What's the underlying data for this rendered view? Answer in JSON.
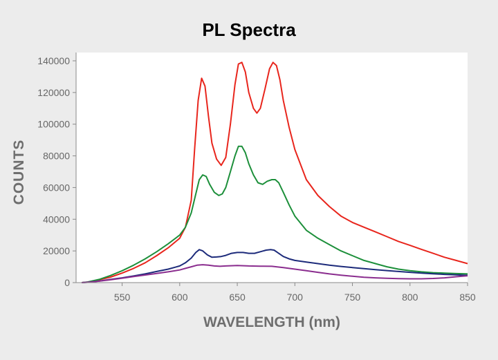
{
  "colors": {
    "background": "#ececec",
    "plot_area": "#ffffff",
    "axis": "#888888"
  },
  "chart_data": {
    "type": "line",
    "title": "PL Spectra",
    "xlabel": "WAVELENGTH (nm)",
    "ylabel": "COUNTS",
    "xlim": [
      510,
      850
    ],
    "ylim": [
      0,
      140000
    ],
    "xticks": [
      550,
      600,
      650,
      700,
      750,
      800,
      850
    ],
    "yticks": [
      0,
      20000,
      40000,
      60000,
      80000,
      100000,
      120000,
      140000
    ],
    "grid": false,
    "legend": "none",
    "series": [
      {
        "color": "#e8251c",
        "x": [
          515,
          520,
          530,
          540,
          550,
          560,
          570,
          580,
          590,
          600,
          605,
          610,
          613,
          616,
          619,
          622,
          625,
          628,
          632,
          636,
          640,
          644,
          648,
          651,
          654,
          657,
          660,
          664,
          667,
          670,
          674,
          678,
          681,
          684,
          687,
          690,
          695,
          700,
          710,
          720,
          730,
          740,
          750,
          760,
          770,
          780,
          790,
          800,
          810,
          820,
          830,
          840,
          850
        ],
        "y": [
          0,
          300,
          1800,
          3500,
          6000,
          9000,
          12500,
          17000,
          22000,
          28000,
          35000,
          52000,
          85000,
          115000,
          129000,
          124000,
          105000,
          88000,
          78000,
          74000,
          79000,
          100000,
          125000,
          138000,
          139000,
          133000,
          120000,
          110000,
          107000,
          110000,
          122000,
          135000,
          139000,
          137000,
          128000,
          115000,
          98000,
          84000,
          65000,
          55000,
          48000,
          42000,
          38000,
          35000,
          32000,
          29000,
          26000,
          23500,
          21000,
          18500,
          16000,
          14000,
          12000
        ]
      },
      {
        "color": "#1c8f3a",
        "x": [
          515,
          520,
          530,
          540,
          550,
          560,
          570,
          580,
          590,
          600,
          605,
          610,
          614,
          617,
          620,
          623,
          626,
          630,
          634,
          637,
          640,
          644,
          648,
          651,
          654,
          657,
          660,
          664,
          668,
          672,
          676,
          680,
          683,
          686,
          690,
          695,
          700,
          710,
          720,
          730,
          740,
          750,
          760,
          770,
          780,
          790,
          800,
          810,
          820,
          830,
          840,
          850
        ],
        "y": [
          0,
          400,
          2000,
          4500,
          7500,
          11000,
          15000,
          19500,
          24500,
          30000,
          35000,
          44000,
          56000,
          65000,
          68000,
          67000,
          62000,
          57000,
          55000,
          56000,
          60000,
          70000,
          80000,
          86000,
          86000,
          82000,
          75000,
          68000,
          63000,
          62000,
          64000,
          65000,
          65000,
          63000,
          57000,
          49000,
          42000,
          33000,
          28000,
          24000,
          20000,
          17000,
          14000,
          12000,
          10000,
          8500,
          7500,
          6800,
          6300,
          6000,
          5700,
          5500
        ]
      },
      {
        "color": "#1c2a7a",
        "x": [
          515,
          520,
          530,
          540,
          550,
          560,
          570,
          580,
          590,
          600,
          605,
          610,
          614,
          617,
          620,
          624,
          628,
          632,
          636,
          640,
          645,
          650,
          655,
          660,
          665,
          670,
          675,
          679,
          682,
          685,
          690,
          695,
          700,
          710,
          720,
          730,
          740,
          750,
          760,
          770,
          780,
          790,
          800,
          810,
          820,
          830,
          840,
          850
        ],
        "y": [
          0,
          200,
          1000,
          2000,
          3000,
          4200,
          5500,
          7000,
          8500,
          10500,
          12500,
          15500,
          19000,
          20800,
          20000,
          17500,
          16000,
          16200,
          16500,
          17200,
          18500,
          19000,
          19000,
          18500,
          18500,
          19500,
          20500,
          20800,
          20500,
          19000,
          16500,
          15000,
          14000,
          13000,
          12000,
          11000,
          10200,
          9500,
          8800,
          8200,
          7600,
          7000,
          6500,
          6000,
          5600,
          5200,
          4900,
          4600
        ]
      },
      {
        "color": "#8a2c8e",
        "x": [
          515,
          520,
          530,
          540,
          550,
          560,
          570,
          580,
          590,
          600,
          605,
          610,
          615,
          620,
          625,
          630,
          635,
          640,
          650,
          660,
          670,
          680,
          690,
          700,
          710,
          720,
          730,
          740,
          750,
          760,
          770,
          780,
          790,
          800,
          810,
          820,
          830,
          840,
          850
        ],
        "y": [
          0,
          200,
          900,
          1800,
          2800,
          3800,
          4800,
          5800,
          6800,
          8000,
          9000,
          10000,
          11000,
          11300,
          11000,
          10500,
          10300,
          10500,
          10800,
          10500,
          10400,
          10300,
          9500,
          8500,
          7500,
          6500,
          5500,
          4700,
          4000,
          3400,
          3000,
          2700,
          2500,
          2400,
          2400,
          2600,
          3000,
          3700,
          4300
        ]
      }
    ]
  }
}
